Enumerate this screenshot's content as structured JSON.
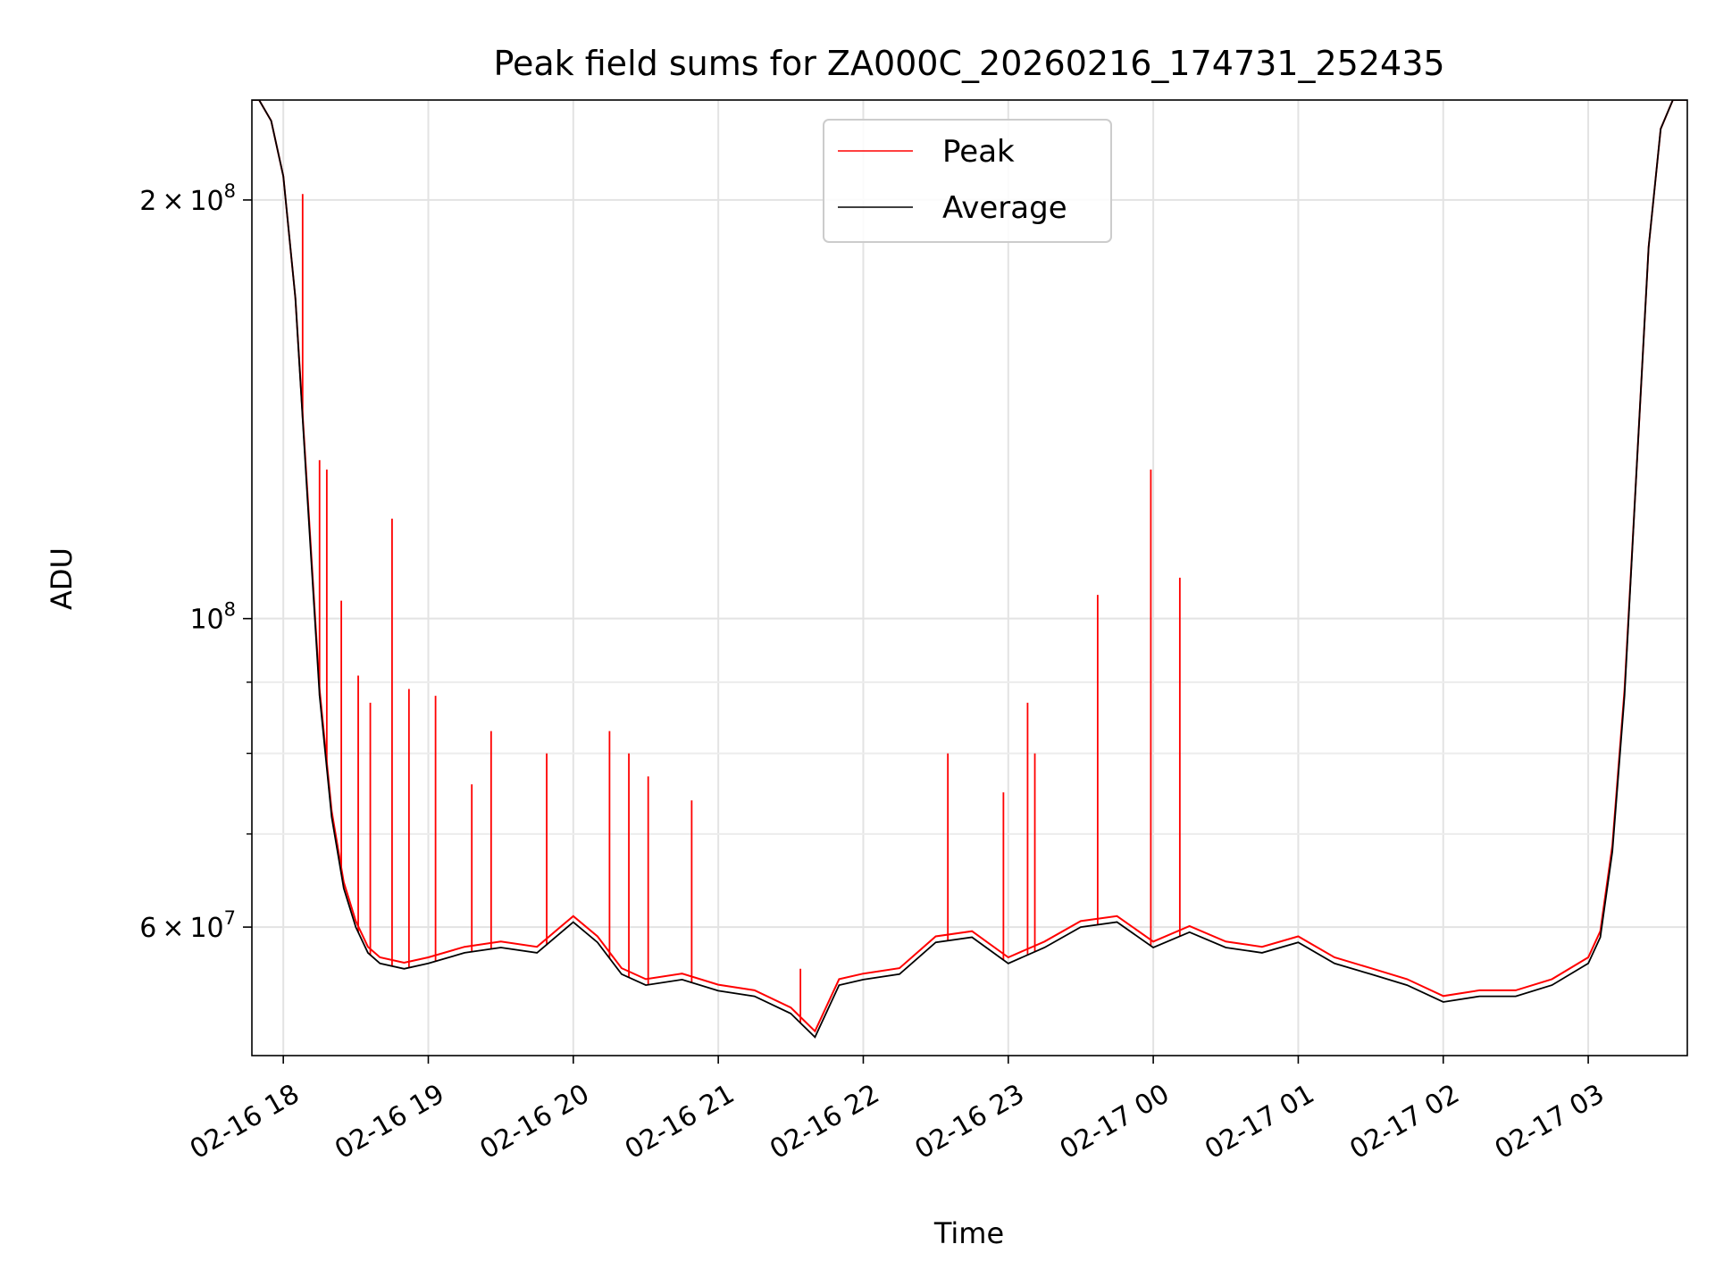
{
  "chart_data": {
    "type": "line",
    "title": "Peak field sums for ZA000C_20260216_174731_252435",
    "xlabel": "Time",
    "ylabel": "ADU",
    "yscale": "log",
    "grid": true,
    "legend_position": "upper center",
    "xlim": [
      "2026-02-16 17:47",
      "2026-02-17 03:41"
    ],
    "ylim": [
      48500000,
      236000000
    ],
    "x_ticks": [
      {
        "value": "2026-02-16 18:00",
        "label": "02-16 18"
      },
      {
        "value": "2026-02-16 19:00",
        "label": "02-16 19"
      },
      {
        "value": "2026-02-16 20:00",
        "label": "02-16 20"
      },
      {
        "value": "2026-02-16 21:00",
        "label": "02-16 21"
      },
      {
        "value": "2026-02-16 22:00",
        "label": "02-16 22"
      },
      {
        "value": "2026-02-16 23:00",
        "label": "02-16 23"
      },
      {
        "value": "2026-02-17 00:00",
        "label": "02-17 00"
      },
      {
        "value": "2026-02-17 01:00",
        "label": "02-17 01"
      },
      {
        "value": "2026-02-17 02:00",
        "label": "02-17 02"
      },
      {
        "value": "2026-02-17 03:00",
        "label": "02-17 03"
      }
    ],
    "y_major_ticks": [
      {
        "value": 60000000,
        "base": "6",
        "exp": "7"
      },
      {
        "value": 100000000,
        "base": "",
        "exp": "8"
      },
      {
        "value": 200000000,
        "base": "2",
        "exp": "8"
      }
    ],
    "y_minor_ticks": [
      70000000,
      80000000,
      90000000
    ],
    "series": [
      {
        "name": "Average",
        "color": "#000000",
        "x": [
          "2026-02-16 17:47",
          "2026-02-16 17:50",
          "2026-02-16 17:55",
          "2026-02-16 18:00",
          "2026-02-16 18:05",
          "2026-02-16 18:10",
          "2026-02-16 18:15",
          "2026-02-16 18:20",
          "2026-02-16 18:25",
          "2026-02-16 18:30",
          "2026-02-16 18:35",
          "2026-02-16 18:40",
          "2026-02-16 18:50",
          "2026-02-16 19:00",
          "2026-02-16 19:15",
          "2026-02-16 19:30",
          "2026-02-16 19:45",
          "2026-02-16 20:00",
          "2026-02-16 20:10",
          "2026-02-16 20:20",
          "2026-02-16 20:30",
          "2026-02-16 20:45",
          "2026-02-16 21:00",
          "2026-02-16 21:15",
          "2026-02-16 21:30",
          "2026-02-16 21:40",
          "2026-02-16 21:50",
          "2026-02-16 22:00",
          "2026-02-16 22:15",
          "2026-02-16 22:30",
          "2026-02-16 22:45",
          "2026-02-16 23:00",
          "2026-02-16 23:15",
          "2026-02-16 23:30",
          "2026-02-16 23:45",
          "2026-02-17 00:00",
          "2026-02-17 00:15",
          "2026-02-17 00:30",
          "2026-02-17 00:45",
          "2026-02-17 01:00",
          "2026-02-17 01:15",
          "2026-02-17 01:30",
          "2026-02-17 01:45",
          "2026-02-17 02:00",
          "2026-02-17 02:15",
          "2026-02-17 02:30",
          "2026-02-17 02:45",
          "2026-02-17 03:00",
          "2026-02-17 03:05",
          "2026-02-17 03:10",
          "2026-02-17 03:15",
          "2026-02-17 03:20",
          "2026-02-17 03:25",
          "2026-02-17 03:30",
          "2026-02-17 03:35",
          "2026-02-17 03:41"
        ],
        "values": [
          236000000,
          236000000,
          228000000,
          208000000,
          170000000,
          122000000,
          88000000,
          72000000,
          64000000,
          60000000,
          57500000,
          56500000,
          56000000,
          56500000,
          57500000,
          58000000,
          57500000,
          60500000,
          58500000,
          55500000,
          54500000,
          55000000,
          54000000,
          53500000,
          52000000,
          50000000,
          54500000,
          55000000,
          55500000,
          58500000,
          59000000,
          56500000,
          58000000,
          60000000,
          60500000,
          58000000,
          59500000,
          58000000,
          57500000,
          58500000,
          56500000,
          55500000,
          54500000,
          53000000,
          53500000,
          53500000,
          54500000,
          56500000,
          59000000,
          68000000,
          88000000,
          128000000,
          185000000,
          225000000,
          236000000,
          236000000
        ]
      },
      {
        "name": "Peak",
        "color": "#ff0000",
        "x": [
          "2026-02-16 18:08",
          "2026-02-16 18:15",
          "2026-02-16 18:18",
          "2026-02-16 18:24",
          "2026-02-16 18:31",
          "2026-02-16 18:36",
          "2026-02-16 18:45",
          "2026-02-16 18:52",
          "2026-02-16 19:03",
          "2026-02-16 19:18",
          "2026-02-16 19:26",
          "2026-02-16 19:49",
          "2026-02-16 20:15",
          "2026-02-16 20:23",
          "2026-02-16 20:31",
          "2026-02-16 20:49",
          "2026-02-16 21:34",
          "2026-02-16 22:35",
          "2026-02-16 22:58",
          "2026-02-16 23:08",
          "2026-02-16 23:11",
          "2026-02-16 23:37",
          "2026-02-16 23:59",
          "2026-02-17 00:11"
        ],
        "values": [
          202000000,
          130000000,
          128000000,
          103000000,
          91000000,
          87000000,
          118000000,
          89000000,
          88000000,
          76000000,
          83000000,
          80000000,
          83000000,
          80000000,
          77000000,
          74000000,
          56000000,
          80000000,
          75000000,
          87000000,
          80000000,
          104000000,
          128000000,
          107000000
        ]
      }
    ]
  }
}
